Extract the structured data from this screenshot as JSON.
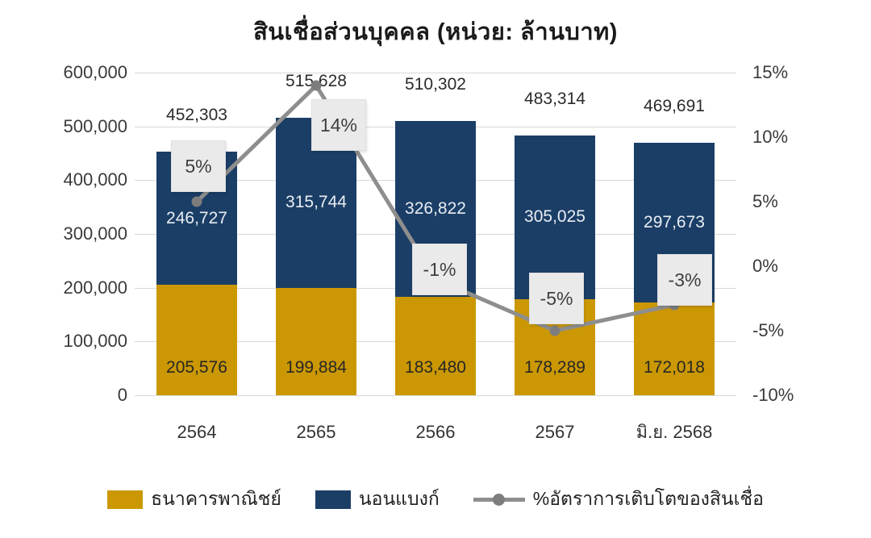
{
  "title": "สินเชื่อส่วนบุคคล (หน่วย: ล้านบาท)",
  "colors": {
    "commercial_bank": "#CB9803",
    "non_bank": "#1B3E66",
    "growth_line": "#8E8E8E",
    "growth_marker": "#7D7D7D",
    "growth_label_bg": "#EAEAEA",
    "gridline": "#D8D8D8"
  },
  "chart_data": {
    "type": "bar",
    "subtype": "stacked-bar-with-line-overlay",
    "title": "สินเชื่อส่วนบุคคล (หน่วย: ล้านบาท)",
    "categories": [
      "2564",
      "2565",
      "2566",
      "2567",
      "มิ.ย. 2568"
    ],
    "series": [
      {
        "name": "ธนาคารพาณิชย์",
        "type": "bar",
        "color": "#CB9803",
        "values": [
          205576,
          199884,
          183480,
          178289,
          172018
        ],
        "labels": [
          "205,576",
          "199,884",
          "183,480",
          "178,289",
          "172,018"
        ]
      },
      {
        "name": "นอนแบงก์",
        "type": "bar",
        "color": "#1B3E66",
        "values": [
          246727,
          315744,
          326822,
          305025,
          297673
        ],
        "labels": [
          "246,727",
          "315,744",
          "326,822",
          "305,025",
          "297,673"
        ]
      },
      {
        "name": "%อัตราการเติบโตของสินเชื่อ",
        "type": "line",
        "color": "#8E8E8E",
        "values": [
          5,
          14,
          -1,
          -5,
          -3
        ],
        "labels": [
          "5%",
          "14%",
          "-1%",
          "-5%",
          "-3%"
        ]
      }
    ],
    "totals": [
      452303,
      515628,
      510302,
      483314,
      469691
    ],
    "total_labels": [
      "452,303",
      "515,628",
      "510,302",
      "483,314",
      "469,691"
    ],
    "left_axis": {
      "ticks": [
        "600,000",
        "500,000",
        "400,000",
        "300,000",
        "200,000",
        "100,000",
        "0"
      ],
      "min": 0,
      "max": 600000
    },
    "right_axis": {
      "ticks": [
        "15%",
        "10%",
        "5%",
        "0%",
        "-5%",
        "-10%"
      ],
      "min": -10,
      "max": 15
    },
    "grid": "horizontal",
    "legend_position": "bottom"
  }
}
